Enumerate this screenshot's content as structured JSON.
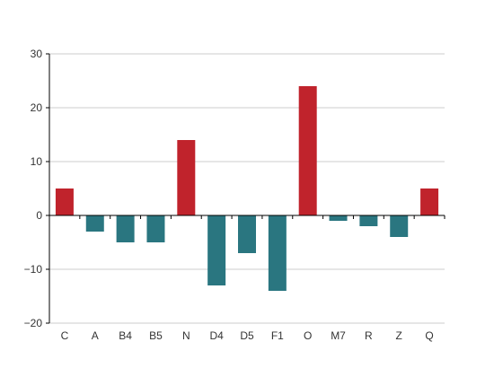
{
  "chart_data": {
    "type": "bar",
    "categories": [
      "C",
      "A",
      "B4",
      "B5",
      "N",
      "D4",
      "D5",
      "F1",
      "O",
      "M7",
      "R",
      "Z",
      "Q"
    ],
    "values": [
      5,
      -3,
      -5,
      -5,
      14,
      -13,
      -7,
      -14,
      24,
      -1,
      -2,
      -4,
      5
    ],
    "ylim": [
      -20,
      30
    ],
    "yticks": [
      30,
      20,
      10,
      0,
      -10,
      -20
    ],
    "ytick_labels": [
      "30",
      "20",
      "10",
      "0",
      "−10",
      "−20"
    ],
    "grid": true,
    "colors": {
      "positive": "#C0232C",
      "negative": "#2A7680",
      "grid": "#CCCCCC",
      "axis": "#000000",
      "text": "#333333"
    }
  }
}
